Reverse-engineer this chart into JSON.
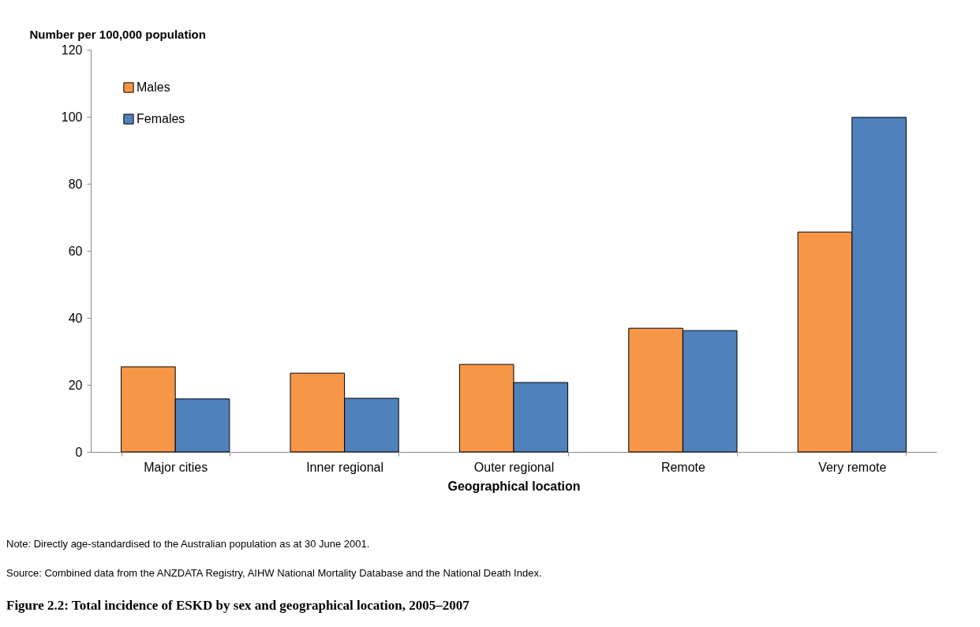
{
  "chart_data": {
    "type": "bar",
    "title": "Figure 2.2: Total incidence of ESKD by sex and geographical location, 2005–2007",
    "xlabel": "Geographical location",
    "ylabel": "Number per 100,000 population",
    "categories": [
      "Major cities",
      "Inner regional",
      "Outer regional",
      "Remote",
      "Very remote"
    ],
    "series": [
      {
        "name": "Males",
        "color": "#f79646",
        "values": [
          25.4,
          23.5,
          26.1,
          36.9,
          65.6
        ]
      },
      {
        "name": "Females",
        "color": "#4f81bd",
        "values": [
          15.8,
          16.0,
          20.7,
          36.2,
          99.8
        ]
      }
    ],
    "ylim": [
      0,
      120
    ],
    "yticks": [
      0,
      20,
      40,
      60,
      80,
      100,
      120
    ],
    "grid": false,
    "legend": "top left",
    "annotations": [
      "Note: Directly age-standardised to the Australian population as at 30 June 2001.",
      "Source: Combined data from the ANZDATA Registry, AIHW National Mortality Database and the National Death Index."
    ]
  }
}
